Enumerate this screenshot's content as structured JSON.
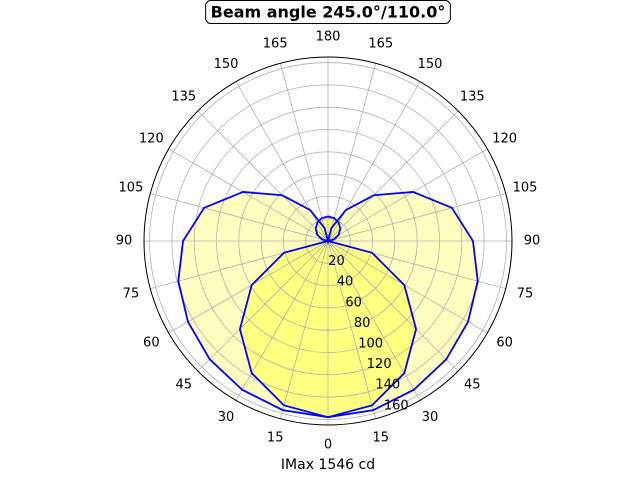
{
  "chart_data": {
    "type": "polar",
    "title": "Beam angle 245.0°/110.0°",
    "xlabel": "IMax 1546 cd",
    "x": [
      -180,
      -165,
      -150,
      -135,
      -120,
      -105,
      -90,
      -75,
      -60,
      -45,
      -30,
      -15,
      0,
      15,
      30,
      45,
      60,
      75,
      90,
      105,
      120,
      135,
      150,
      165,
      180
    ],
    "series": [
      {
        "color": "#0000ff",
        "fill": "#ffffc0",
        "values": [
          0,
          12,
          32,
          58,
          88,
          115,
          130,
          139,
          145,
          150,
          154,
          157,
          158,
          157,
          154,
          150,
          145,
          139,
          130,
          115,
          88,
          58,
          32,
          12,
          0
        ]
      },
      {
        "color": "#0000ff",
        "fill": "#ffff80",
        "values": [
          22,
          21.3,
          19.1,
          15.6,
          11,
          5.7,
          0,
          40.9,
          79,
          111.7,
          136.8,
          152.6,
          158,
          152.6,
          136.8,
          111.7,
          79,
          40.9,
          0,
          5.7,
          11,
          15.6,
          19.1,
          21.3,
          22
        ]
      }
    ],
    "rlim": [
      0,
      165
    ],
    "rticks": [
      20,
      40,
      60,
      80,
      100,
      120,
      140,
      160
    ],
    "thetaticks": [
      0,
      15,
      30,
      45,
      60,
      75,
      90,
      105,
      120,
      135,
      150,
      165,
      180,
      {
        "value": 195,
        "label": "165"
      },
      {
        "value": 210,
        "label": "150"
      },
      {
        "value": 225,
        "label": "135"
      },
      {
        "value": 240,
        "label": "120"
      },
      {
        "value": 255,
        "label": "105"
      },
      {
        "value": 270,
        "label": "90"
      },
      {
        "value": 285,
        "label": "75"
      },
      {
        "value": 300,
        "label": "60"
      },
      {
        "value": 315,
        "label": "45"
      },
      {
        "value": 330,
        "label": "30"
      },
      {
        "value": 345,
        "label": "15"
      }
    ],
    "grid": true
  }
}
